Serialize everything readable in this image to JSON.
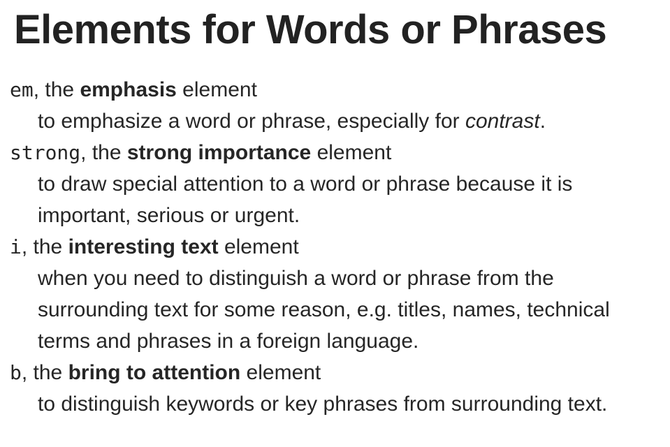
{
  "title": "Elements for Words or Phrases",
  "entries": [
    {
      "code": "em",
      "sep": ", the ",
      "name": "emphasis",
      "suffix": " element",
      "desc_before": "to emphasize a word or phrase, especially for ",
      "desc_italic": "contrast",
      "desc_after": "."
    },
    {
      "code": "strong",
      "sep": ", the ",
      "name": "strong importance",
      "suffix": " element",
      "desc_line1": "to draw special attention to a word or phrase because it is",
      "desc_line2": "important, serious or urgent."
    },
    {
      "code": "i",
      "sep": ", the ",
      "name": "interesting text",
      "suffix": " element",
      "desc_line1": "when you need to distinguish a word or phrase from the",
      "desc_line2": "surrounding text for some reason, e.g. titles, names, technical",
      "desc_line3": "terms and phrases in a foreign language."
    },
    {
      "code": "b",
      "sep": ", the ",
      "name": "bring to attention",
      "suffix": " element",
      "desc_line1": "to distinguish keywords or key phrases from surrounding text."
    }
  ]
}
